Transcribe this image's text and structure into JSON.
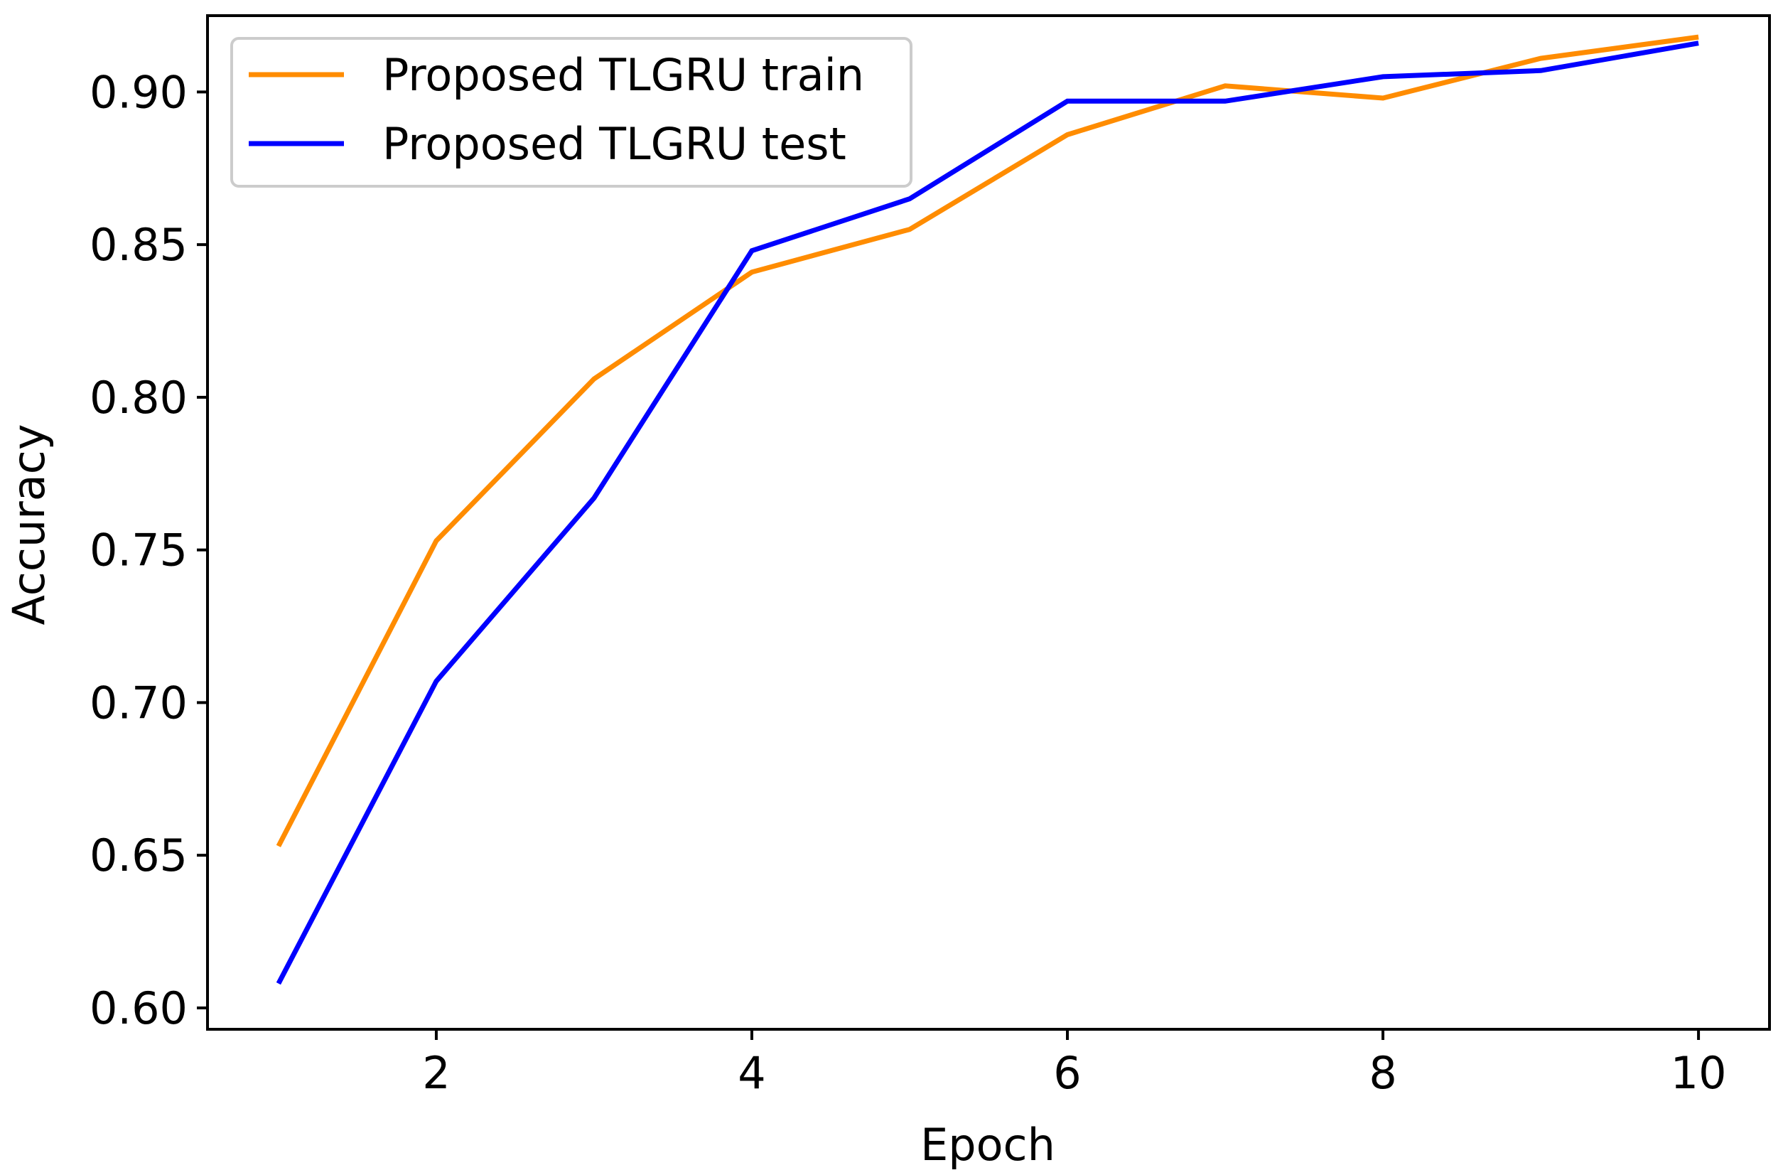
{
  "chart_data": {
    "type": "line",
    "title": "",
    "xlabel": "Epoch",
    "ylabel": "Accuracy",
    "xlim": [
      0.55,
      10.45
    ],
    "ylim": [
      0.593,
      0.925
    ],
    "xticks": [
      2,
      4,
      6,
      8,
      10
    ],
    "xtick_labels": [
      "2",
      "4",
      "6",
      "8",
      "10"
    ],
    "yticks": [
      0.6,
      0.65,
      0.7,
      0.75,
      0.8,
      0.85,
      0.9
    ],
    "ytick_labels": [
      "0.60",
      "0.65",
      "0.70",
      "0.75",
      "0.80",
      "0.85",
      "0.90"
    ],
    "grid": false,
    "legend_position": "top-left",
    "x": [
      1,
      2,
      3,
      4,
      5,
      6,
      7,
      8,
      9,
      10
    ],
    "series": [
      {
        "name": "Proposed TLGRU train",
        "color": "#ff8c00",
        "values": [
          0.653,
          0.753,
          0.806,
          0.841,
          0.855,
          0.886,
          0.902,
          0.898,
          0.911,
          0.918
        ]
      },
      {
        "name": "Proposed TLGRU test",
        "color": "#0000ff",
        "values": [
          0.608,
          0.707,
          0.767,
          0.848,
          0.865,
          0.897,
          0.897,
          0.905,
          0.907,
          0.916
        ]
      }
    ]
  }
}
